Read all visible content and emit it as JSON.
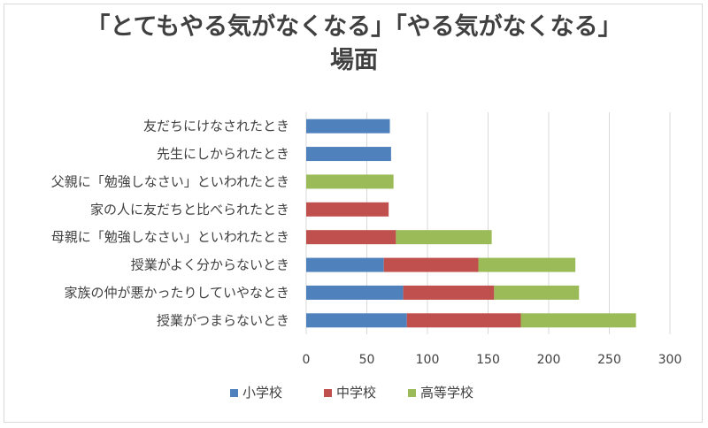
{
  "chart_data": {
    "type": "bar",
    "orientation": "horizontal",
    "stacked": true,
    "title_line1": "「とてもやる気がなくなる」「やる気がなくなる」",
    "title_line2": "場面",
    "categories": [
      "友だちにけなされたとき",
      "先生にしかられたとき",
      "父親に「勉強しなさい」といわれたとき",
      "家の人に友だちと比べられたとき",
      "母親に「勉強しなさい」といわれたとき",
      "授業がよく分からないとき",
      "家族の仲が悪かったりしていやなとき",
      "授業がつまらないとき"
    ],
    "series": [
      {
        "name": "小学校",
        "color": "#4f81bd",
        "values": [
          69,
          70,
          0,
          0,
          0,
          64,
          80,
          83
        ]
      },
      {
        "name": "中学校",
        "color": "#c0504d",
        "values": [
          0,
          0,
          0,
          68,
          74,
          78,
          75,
          94
        ]
      },
      {
        "name": "高等学校",
        "color": "#9bbb59",
        "values": [
          0,
          0,
          72,
          0,
          79,
          80,
          70,
          95
        ]
      }
    ],
    "x_ticks": [
      0,
      50,
      100,
      150,
      200,
      250,
      300
    ],
    "xlim": [
      0,
      300
    ],
    "grid": true,
    "legend_position": "bottom"
  }
}
